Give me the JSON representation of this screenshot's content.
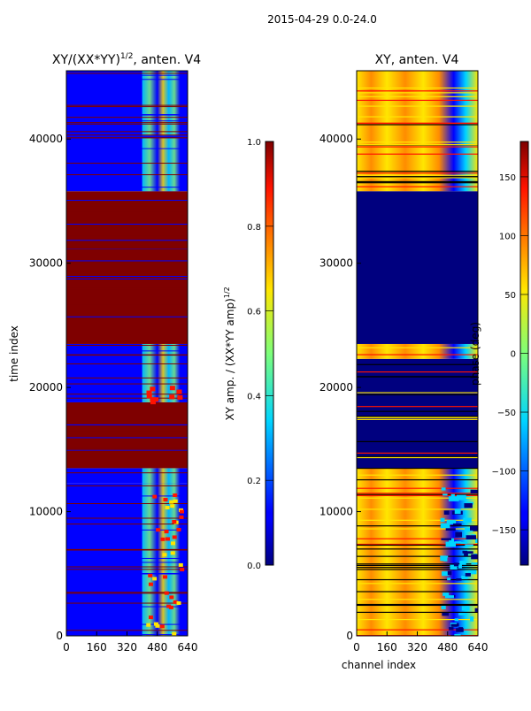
{
  "figure_title": "2015-04-29 0.0-24.0",
  "colors": {
    "low": "#00007f",
    "high": "#7f0000",
    "axis": "#000000"
  },
  "chart_data": [
    {
      "type": "heatmap",
      "title": "XY/(XX*YY)^1/2, anten. V4",
      "title_main": "XY/(XX*YY)",
      "title_exp": "1/2",
      "title_rest": ", anten. V4",
      "xlabel": "",
      "ylabel": "time index",
      "xlim": [
        0,
        640
      ],
      "ylim": [
        0,
        45500
      ],
      "xticks": [
        0,
        160,
        320,
        480,
        640
      ],
      "yticks": [
        0,
        10000,
        20000,
        30000,
        40000
      ],
      "colorbar": {
        "label": "XY amp. / (XX*YY amp)^1/2",
        "label_main": "XY amp. / (XX*YY amp)",
        "label_exp": "1/2",
        "range": [
          0.0,
          1.0
        ],
        "ticks": [
          "0.0",
          "0.2",
          "0.4",
          "0.6",
          "0.8",
          "1.0"
        ],
        "tick_values": [
          0.0,
          0.2,
          0.4,
          0.6,
          0.8,
          1.0
        ]
      },
      "bands": [
        {
          "from": 0,
          "to": 12300,
          "level": "low-with-bright-channels-400-600"
        },
        {
          "from": 12300,
          "to": 13500,
          "level": "mixed"
        },
        {
          "from": 13500,
          "to": 18800,
          "level": "saturated-1.0"
        },
        {
          "from": 18800,
          "to": 23500,
          "level": "low-with-bright-channels-400-600"
        },
        {
          "from": 23500,
          "to": 35800,
          "level": "saturated-1.0"
        },
        {
          "from": 35800,
          "to": 45500,
          "level": "low-with-bright-channels-400-600"
        }
      ]
    },
    {
      "type": "heatmap",
      "title": "XY, anten. V4",
      "xlabel": "channel index",
      "ylabel": "",
      "xlim": [
        0,
        640
      ],
      "ylim": [
        0,
        45500
      ],
      "xticks": [
        0,
        160,
        320,
        480,
        640
      ],
      "yticks": [
        0,
        10000,
        20000,
        30000,
        40000
      ],
      "colorbar": {
        "label": "phase (deg)",
        "range": [
          -180,
          180
        ],
        "ticks": [
          "−150",
          "−100",
          "−50",
          "0",
          "50",
          "100",
          "150"
        ],
        "tick_values": [
          -150,
          -100,
          -50,
          0,
          50,
          100,
          150
        ]
      },
      "bands": [
        {
          "from": 0,
          "to": 12500,
          "level": "high-phase-striped"
        },
        {
          "from": 12500,
          "to": 13500,
          "level": "mixed"
        },
        {
          "from": 13500,
          "to": 22300,
          "level": "low-phase-with-stripes"
        },
        {
          "from": 22300,
          "to": 23500,
          "level": "high-phase"
        },
        {
          "from": 23500,
          "to": 35800,
          "level": "minimum-phase"
        },
        {
          "from": 35800,
          "to": 45500,
          "level": "high-phase-striped"
        }
      ]
    }
  ]
}
